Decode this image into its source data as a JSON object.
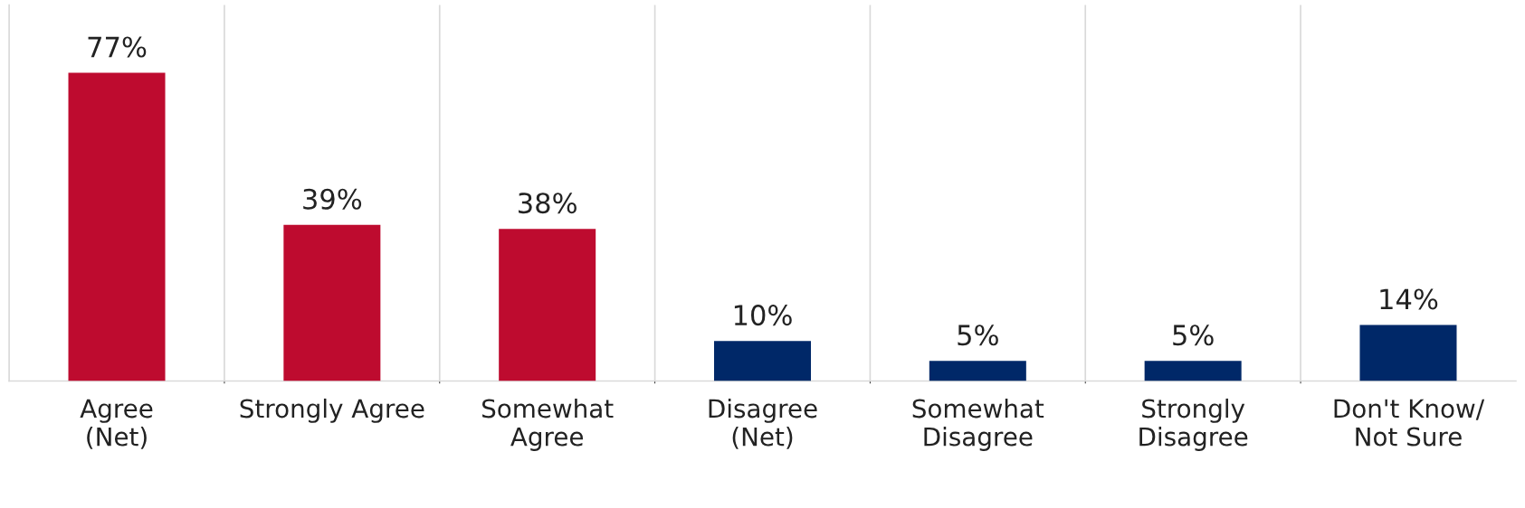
{
  "chart_data": {
    "type": "bar",
    "categories": [
      "Agree\n(Net)",
      "Strongly Agree",
      "Somewhat\nAgree",
      "Disagree\n(Net)",
      "Somewhat\nDisagree",
      "Strongly\nDisagree",
      "Don't Know/\nNot Sure"
    ],
    "values": [
      77,
      39,
      38,
      10,
      5,
      5,
      14
    ],
    "colors": [
      "#be0b2f",
      "#be0b2f",
      "#be0b2f",
      "#002868",
      "#002868",
      "#002868",
      "#002868"
    ],
    "value_labels": [
      "77%",
      "39%",
      "38%",
      "10%",
      "5%",
      "5%",
      "14%"
    ],
    "grid": "x"
  }
}
